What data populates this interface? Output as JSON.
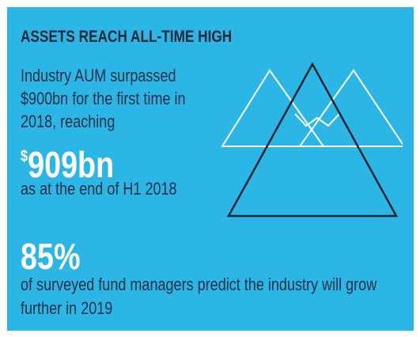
{
  "header": {
    "title": "ASSETS REACH ALL-TIME HIGH"
  },
  "highlight": {
    "intro": "Industry AUM surpassed $900bn for the first time in 2018, reaching",
    "currency": "$",
    "amount": "909bn",
    "after": "as at the end of H1 2018"
  },
  "forecast": {
    "figure": "85%",
    "text": "of surveyed fund managers predict the industry will grow further in 2019"
  }
}
